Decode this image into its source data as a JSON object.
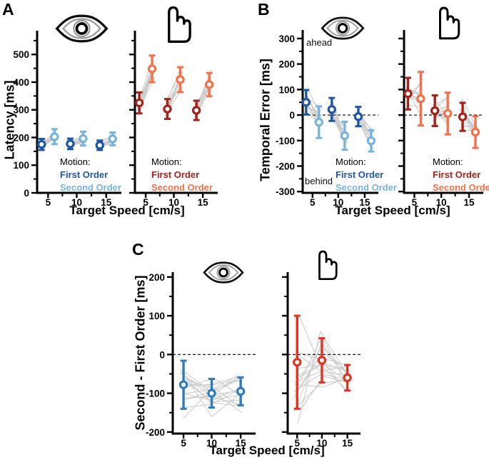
{
  "figure_xlabel": "Target Speed [cm/s]",
  "chart_data": [
    {
      "id": "A",
      "label": "A",
      "type": "scatter",
      "ylabel": "Latency [ms]",
      "xlabel": "Target Speed [cm/s]",
      "ylim": [
        0,
        578
      ],
      "yticks": [
        0,
        100,
        200,
        300,
        400,
        500
      ],
      "yticks_minor": [
        50,
        150,
        250,
        350,
        450,
        550
      ],
      "xticks": [
        5,
        10,
        15
      ],
      "xticks_minor": [
        7.5,
        12.5
      ],
      "zero_line": false,
      "grid": false,
      "subplots": [
        {
          "icon": "eye",
          "legend_title": "Motion:",
          "n_lines": 13,
          "series": [
            {
              "name": "First Order",
              "color": "#1f57a5",
              "x": [
                5,
                10,
                15
              ],
              "y": [
                175,
                177,
                172
              ],
              "err": [
                20,
                19,
                17
              ]
            },
            {
              "name": "Second Order",
              "color": "#79b4de",
              "x": [
                5,
                10,
                15
              ],
              "y": [
                203,
                196,
                195
              ],
              "err": [
                27,
                25,
                23
              ]
            }
          ]
        },
        {
          "icon": "hand",
          "legend_title": "Motion:",
          "n_lines": 13,
          "series": [
            {
              "name": "First Order",
              "color": "#a42318",
              "x": [
                5,
                10,
                15
              ],
              "y": [
                325,
                303,
                298
              ],
              "err": [
                38,
                36,
                35
              ]
            },
            {
              "name": "Second Order",
              "color": "#f4714a",
              "x": [
                5,
                10,
                15
              ],
              "y": [
                448,
                409,
                391
              ],
              "err": [
                48,
                45,
                42
              ]
            }
          ]
        }
      ]
    },
    {
      "id": "B",
      "label": "B",
      "type": "scatter",
      "ylabel": "Temporal Error [ms]",
      "xlabel": "Target Speed [cm/s]",
      "ylim": [
        -305,
        325
      ],
      "yticks": [
        300,
        200,
        100,
        0,
        -100,
        -200,
        -300
      ],
      "yticks_minor": [
        250,
        150,
        50,
        -50,
        -150,
        -250
      ],
      "xticks": [
        5,
        10,
        15
      ],
      "xticks_minor": [
        7.5,
        12.5
      ],
      "zero_line": true,
      "grid": false,
      "annotations": {
        "top": "ahead",
        "bottom": "behind"
      },
      "subplots": [
        {
          "icon": "eye",
          "legend_title": "Motion:",
          "n_lines": 13,
          "series": [
            {
              "name": "First Order",
              "color": "#1f57a5",
              "x": [
                5,
                10,
                15
              ],
              "y": [
                50,
                22,
                -6
              ],
              "err": [
                48,
                45,
                38
              ]
            },
            {
              "name": "Second Order",
              "color": "#79b4de",
              "x": [
                5,
                10,
                15
              ],
              "y": [
                -28,
                -81,
                -101
              ],
              "err": [
                62,
                55,
                42
              ]
            }
          ]
        },
        {
          "icon": "hand",
          "legend_title": "Motion:",
          "n_lines": 13,
          "series": [
            {
              "name": "First Order",
              "color": "#a42318",
              "x": [
                5,
                10,
                15
              ],
              "y": [
                84,
                17,
                -7
              ],
              "err": [
                62,
                60,
                55
              ]
            },
            {
              "name": "Second Order",
              "color": "#f4714a",
              "x": [
                5,
                10,
                15
              ],
              "y": [
                64,
                6,
                -67
              ],
              "err": [
                105,
                82,
                62
              ]
            }
          ]
        }
      ]
    },
    {
      "id": "C",
      "label": "C",
      "type": "scatter",
      "ylabel": "Second - First Order [ms]",
      "xlabel": "Target Speed [cm/s]",
      "ylim": [
        -204,
        207
      ],
      "yticks": [
        200,
        100,
        0,
        -100,
        -200
      ],
      "yticks_minor": [
        150,
        50,
        -50,
        -150
      ],
      "xticks": [
        5,
        10,
        15
      ],
      "xticks_minor": [
        7.5,
        12.5
      ],
      "zero_line": true,
      "grid": false,
      "subplots": [
        {
          "icon": "eye",
          "n_lines": 17,
          "series": [
            {
              "color": "#2e7bbe",
              "x": [
                5,
                10,
                15
              ],
              "y": [
                -78,
                -100,
                -95
              ],
              "err": [
                62,
                37,
                36
              ]
            }
          ]
        },
        {
          "icon": "hand",
          "n_lines": 17,
          "series": [
            {
              "color": "#e03322",
              "x": [
                5,
                10,
                15
              ],
              "y": [
                -20,
                -15,
                -60
              ],
              "err": [
                120,
                57,
                33
              ]
            }
          ]
        }
      ]
    }
  ]
}
